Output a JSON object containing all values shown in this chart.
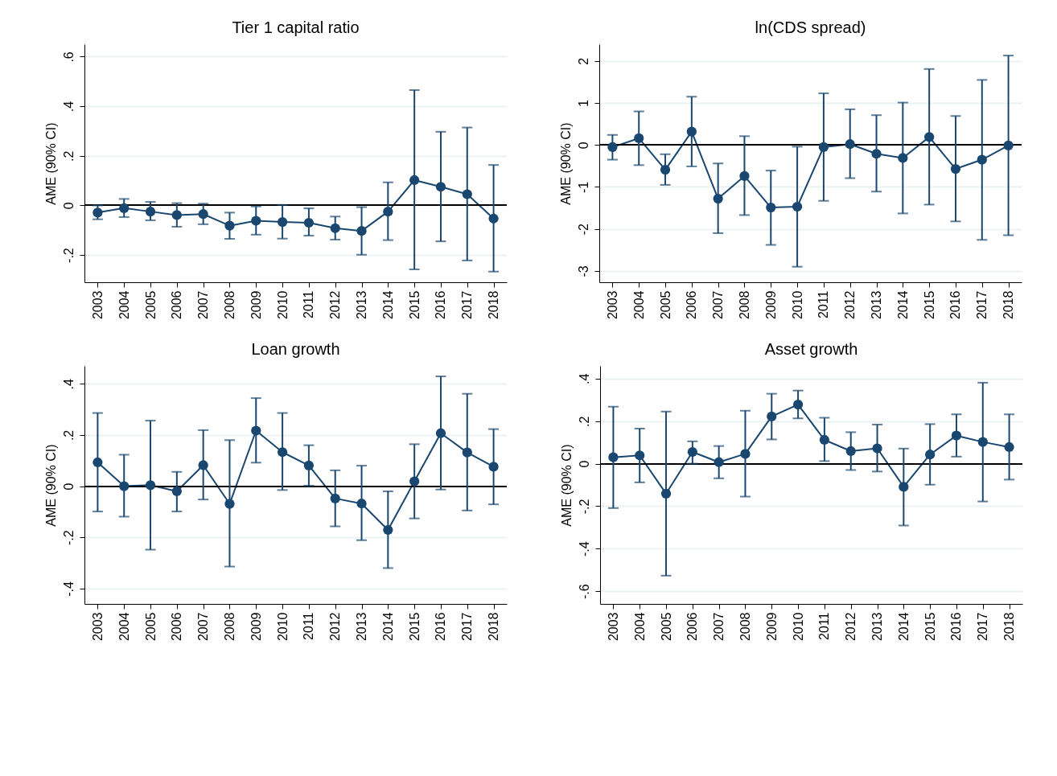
{
  "chart_data": [
    {
      "type": "line",
      "title": "Tier 1 capital ratio",
      "ylabel": "AME (90% CI)",
      "categories": [
        "2003",
        "2004",
        "2005",
        "2006",
        "2007",
        "2008",
        "2009",
        "2010",
        "2011",
        "2012",
        "2013",
        "2014",
        "2015",
        "2016",
        "2017",
        "2018"
      ],
      "color": "#1a476f",
      "marker": "circle",
      "grid": "y",
      "ylim": [
        -0.31,
        0.65
      ],
      "yticks": [
        {
          "value": -0.2,
          "label": "-.2"
        },
        0,
        {
          "value": 0.2,
          "label": ".2"
        },
        {
          "value": 0.4,
          "label": ".4"
        },
        {
          "value": 0.6,
          "label": ".6"
        }
      ],
      "values": [
        -0.029,
        -0.011,
        -0.025,
        -0.039,
        -0.035,
        -0.082,
        -0.062,
        -0.067,
        -0.07,
        -0.092,
        -0.103,
        -0.025,
        0.102,
        0.075,
        0.045,
        -0.053
      ],
      "errors": [
        [
          -0.056,
          0.0
        ],
        [
          -0.047,
          0.026
        ],
        [
          -0.06,
          0.014
        ],
        [
          -0.086,
          0.009
        ],
        [
          -0.076,
          0.007
        ],
        [
          -0.135,
          -0.029
        ],
        [
          -0.118,
          -0.004
        ],
        [
          -0.134,
          0.002
        ],
        [
          -0.122,
          -0.012
        ],
        [
          -0.138,
          -0.045
        ],
        [
          -0.199,
          -0.007
        ],
        [
          -0.14,
          0.093
        ],
        [
          -0.258,
          0.465
        ],
        [
          -0.145,
          0.297
        ],
        [
          -0.222,
          0.314
        ],
        [
          -0.267,
          0.163
        ]
      ],
      "ref_lines": [
        {
          "axis": "y",
          "value": 0,
          "color": "#000000"
        }
      ]
    },
    {
      "type": "line",
      "title": "ln(CDS spread)",
      "ylabel": "AME (90% CI)",
      "categories": [
        "2003",
        "2004",
        "2005",
        "2006",
        "2007",
        "2008",
        "2009",
        "2010",
        "2011",
        "2012",
        "2013",
        "2014",
        "2015",
        "2016",
        "2017",
        "2018"
      ],
      "color": "#1a476f",
      "marker": "circle",
      "grid": "y",
      "ylim": [
        -3.27,
        2.4
      ],
      "yticks": [
        -3,
        -2,
        -1,
        0,
        1,
        2
      ],
      "values": [
        -0.05,
        0.16,
        -0.59,
        0.32,
        -1.28,
        -0.74,
        -1.49,
        -1.47,
        -0.05,
        0.02,
        -0.21,
        -0.31,
        0.19,
        -0.57,
        -0.35,
        -0.01
      ],
      "errors": [
        [
          -0.35,
          0.24
        ],
        [
          -0.48,
          0.8
        ],
        [
          -0.95,
          -0.22
        ],
        [
          -0.51,
          1.15
        ],
        [
          -2.1,
          -0.44
        ],
        [
          -1.67,
          0.21
        ],
        [
          -2.38,
          -0.61
        ],
        [
          -2.9,
          -0.04
        ],
        [
          -1.33,
          1.23
        ],
        [
          -0.79,
          0.85
        ],
        [
          -1.11,
          0.71
        ],
        [
          -1.63,
          1.01
        ],
        [
          -1.42,
          1.81
        ],
        [
          -1.82,
          0.69
        ],
        [
          -2.26,
          1.55
        ],
        [
          -2.15,
          2.13
        ]
      ],
      "ref_lines": [
        {
          "axis": "y",
          "value": 0,
          "color": "#000000"
        }
      ]
    },
    {
      "type": "line",
      "title": "Loan growth",
      "ylabel": "AME (90% CI)",
      "categories": [
        "2003",
        "2004",
        "2005",
        "2006",
        "2007",
        "2008",
        "2009",
        "2010",
        "2011",
        "2012",
        "2013",
        "2014",
        "2015",
        "2016",
        "2017",
        "2018"
      ],
      "color": "#1a476f",
      "marker": "circle",
      "grid": "y",
      "ylim": [
        -0.46,
        0.47
      ],
      "yticks": [
        {
          "value": -0.4,
          "label": "-.4"
        },
        {
          "value": -0.2,
          "label": "-.2"
        },
        0,
        {
          "value": 0.2,
          "label": ".2"
        },
        {
          "value": 0.4,
          "label": ".4"
        }
      ],
      "values": [
        0.093,
        0.0,
        0.004,
        -0.02,
        0.082,
        -0.069,
        0.217,
        0.133,
        0.081,
        -0.048,
        -0.068,
        -0.171,
        0.019,
        0.207,
        0.132,
        0.076
      ],
      "errors": [
        [
          -0.099,
          0.286
        ],
        [
          -0.119,
          0.123
        ],
        [
          -0.248,
          0.256
        ],
        [
          -0.099,
          0.056
        ],
        [
          -0.052,
          0.219
        ],
        [
          -0.314,
          0.18
        ],
        [
          0.092,
          0.344
        ],
        [
          -0.015,
          0.286
        ],
        [
          0.002,
          0.16
        ],
        [
          -0.157,
          0.062
        ],
        [
          -0.211,
          0.08
        ],
        [
          -0.32,
          -0.02
        ],
        [
          -0.126,
          0.164
        ],
        [
          -0.013,
          0.429
        ],
        [
          -0.095,
          0.361
        ],
        [
          -0.071,
          0.223
        ]
      ],
      "ref_lines": [
        {
          "axis": "y",
          "value": 0,
          "color": "#000000"
        }
      ]
    },
    {
      "type": "line",
      "title": "Asset growth",
      "ylabel": "AME (90% CI)",
      "categories": [
        "2003",
        "2004",
        "2005",
        "2006",
        "2007",
        "2008",
        "2009",
        "2010",
        "2011",
        "2012",
        "2013",
        "2014",
        "2015",
        "2016",
        "2017",
        "2018"
      ],
      "color": "#1a476f",
      "marker": "circle",
      "grid": "y",
      "ylim": [
        -0.66,
        0.46
      ],
      "yticks": [
        {
          "value": -0.6,
          "label": "-.6"
        },
        {
          "value": -0.4,
          "label": "-.4"
        },
        {
          "value": -0.2,
          "label": "-.2"
        },
        0,
        {
          "value": 0.2,
          "label": ".2"
        },
        {
          "value": 0.4,
          "label": ".4"
        }
      ],
      "values": [
        0.03,
        0.039,
        -0.141,
        0.055,
        0.007,
        0.046,
        0.222,
        0.278,
        0.112,
        0.059,
        0.072,
        -0.109,
        0.043,
        0.132,
        0.102,
        0.078
      ],
      "errors": [
        [
          -0.209,
          0.268
        ],
        [
          -0.088,
          0.165
        ],
        [
          -0.527,
          0.245
        ],
        [
          0.0,
          0.105
        ],
        [
          -0.069,
          0.083
        ],
        [
          -0.155,
          0.249
        ],
        [
          0.114,
          0.329
        ],
        [
          0.213,
          0.344
        ],
        [
          0.012,
          0.216
        ],
        [
          -0.03,
          0.148
        ],
        [
          -0.037,
          0.184
        ],
        [
          -0.291,
          0.071
        ],
        [
          -0.099,
          0.186
        ],
        [
          0.033,
          0.232
        ],
        [
          -0.178,
          0.381
        ],
        [
          -0.075,
          0.232
        ]
      ],
      "ref_lines": [
        {
          "axis": "y",
          "value": 0,
          "color": "#000000"
        }
      ]
    }
  ]
}
